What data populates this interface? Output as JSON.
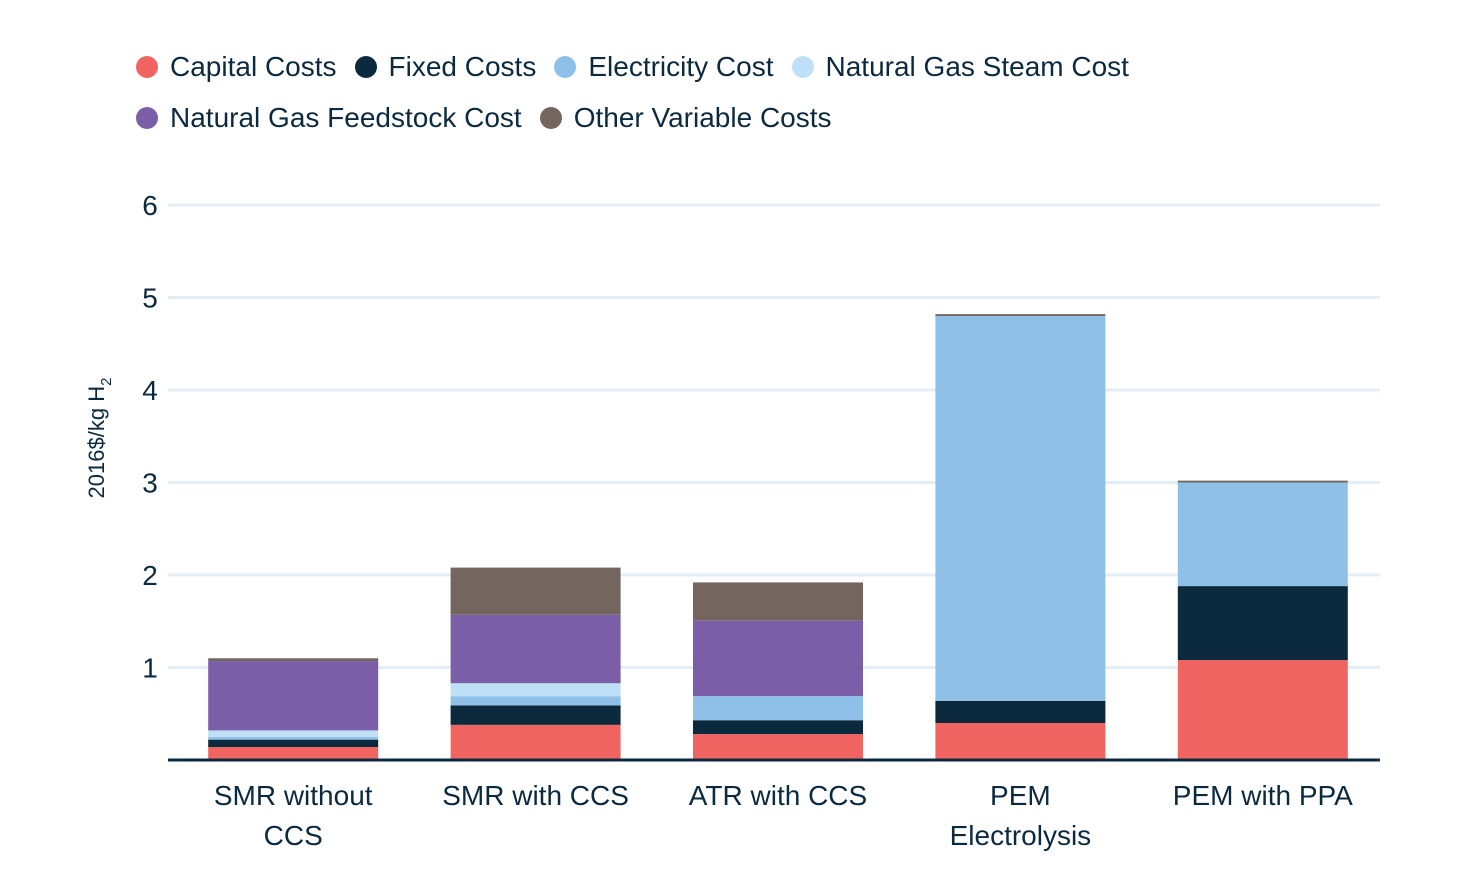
{
  "chart_data": {
    "type": "bar",
    "stacked": true,
    "ylabel": "2016$/kg H",
    "ylabel_subscript": "2",
    "ylim": [
      0,
      6
    ],
    "yticks": [
      1,
      2,
      3,
      4,
      5,
      6
    ],
    "grid": true,
    "legend_position": "top-left",
    "categories": [
      [
        "SMR without",
        "CCS"
      ],
      [
        "SMR with CCS"
      ],
      [
        "ATR with CCS"
      ],
      [
        "PEM",
        "Electrolysis"
      ],
      [
        "PEM with PPA"
      ]
    ],
    "series": [
      {
        "name": "Capital Costs",
        "color": "#f06562",
        "values": [
          0.14,
          0.38,
          0.28,
          0.4,
          1.08
        ]
      },
      {
        "name": "Fixed Costs",
        "color": "#0b2a3e",
        "values": [
          0.08,
          0.21,
          0.15,
          0.24,
          0.8
        ]
      },
      {
        "name": "Electricity Cost",
        "color": "#8fc1e8",
        "values": [
          0.03,
          0.1,
          0.26,
          4.16,
          1.12
        ]
      },
      {
        "name": "Natural Gas Steam Cost",
        "color": "#bde0f7",
        "values": [
          0.07,
          0.14,
          0.0,
          0.0,
          0.0
        ]
      },
      {
        "name": "Natural Gas Feedstock Cost",
        "color": "#7a5fa8",
        "values": [
          0.75,
          0.74,
          0.82,
          0.0,
          0.0
        ]
      },
      {
        "name": "Other Variable Costs",
        "color": "#74665e",
        "values": [
          0.03,
          0.51,
          0.41,
          0.02,
          0.02
        ]
      }
    ]
  }
}
